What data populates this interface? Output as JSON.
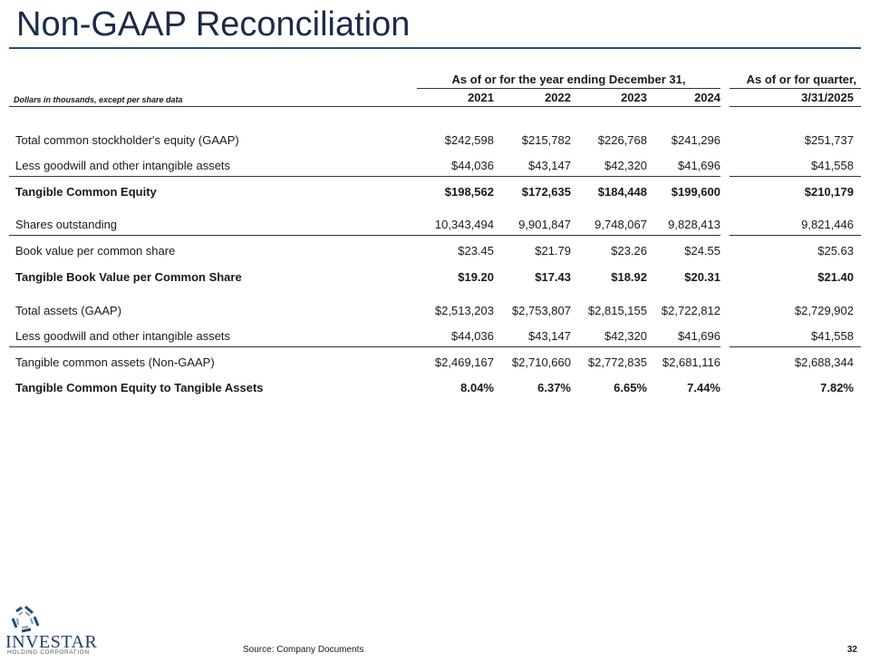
{
  "header": {
    "title": "Non-GAAP Reconciliation"
  },
  "table": {
    "group_headers": [
      "As of or for the year ending December 31,",
      "As of or for quarter,"
    ],
    "unit_note": "Dollars in thousands, except per share data",
    "columns": [
      "2021",
      "2022",
      "2023",
      "2024",
      "3/31/2025"
    ],
    "rows": [
      {
        "label": "Total common stockholder's equity (GAAP)",
        "values": [
          "$242,598",
          "$215,782",
          "$226,768",
          "$241,296",
          "$251,737"
        ],
        "bold": false,
        "rule_below": false
      },
      {
        "label": "Less goodwill and other intangible assets",
        "values": [
          "$44,036",
          "$43,147",
          "$42,320",
          "$41,696",
          "$41,558"
        ],
        "bold": false,
        "rule_below": true
      },
      {
        "label": "Tangible Common Equity",
        "values": [
          "$198,562",
          "$172,635",
          "$184,448",
          "$199,600",
          "$210,179"
        ],
        "bold": true,
        "rule_below": false
      },
      {
        "label": "Shares outstanding",
        "values": [
          "10,343,494",
          "9,901,847",
          "9,748,067",
          "9,828,413",
          "9,821,446"
        ],
        "bold": false,
        "rule_below": true
      },
      {
        "label": "Book value per common share",
        "values": [
          "$23.45",
          "$21.79",
          "$23.26",
          "$24.55",
          "$25.63"
        ],
        "bold": false,
        "rule_below": false
      },
      {
        "label": "Tangible Book Value per Common Share",
        "values": [
          "$19.20",
          "$17.43",
          "$18.92",
          "$20.31",
          "$21.40"
        ],
        "bold": true,
        "rule_below": false
      },
      {
        "label": "Total assets (GAAP)",
        "values": [
          "$2,513,203",
          "$2,753,807",
          "$2,815,155",
          "$2,722,812",
          "$2,729,902"
        ],
        "bold": false,
        "rule_below": false
      },
      {
        "label": "Less goodwill and other intangible assets",
        "values": [
          "$44,036",
          "$43,147",
          "$42,320",
          "$41,696",
          "$41,558"
        ],
        "bold": false,
        "rule_below": true
      },
      {
        "label": "Tangible common assets (Non-GAAP)",
        "values": [
          "$2,469,167",
          "$2,710,660",
          "$2,772,835",
          "$2,681,116",
          "$2,688,344"
        ],
        "bold": false,
        "rule_below": false
      },
      {
        "label": "Tangible Common Equity to Tangible Assets",
        "values": [
          "8.04%",
          "6.37%",
          "6.65%",
          "7.44%",
          "7.82%"
        ],
        "bold": true,
        "rule_below": false
      }
    ]
  },
  "footer": {
    "logo_name": "INVESTAR",
    "logo_subtitle": "HOLDING CORPORATION",
    "source": "Source: Company Documents",
    "page_number": "32"
  }
}
